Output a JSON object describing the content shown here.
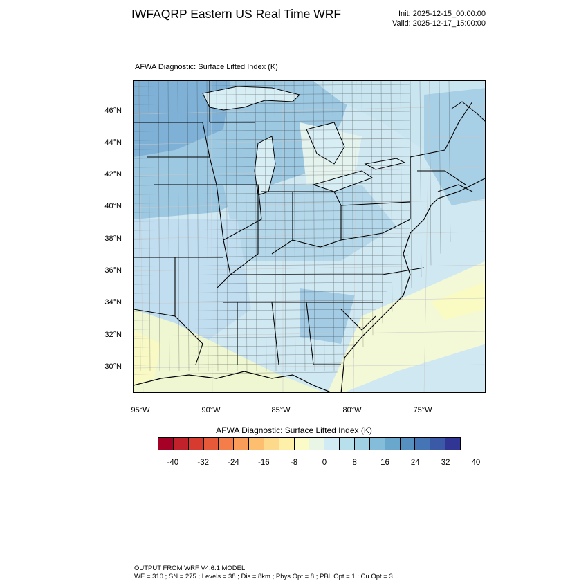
{
  "header": {
    "title": "IWFAQRP Eastern US Real Time WRF",
    "init": "Init: 2025-12-15_00:00:00",
    "valid": "Valid: 2025-12-17_15:00:00"
  },
  "plot": {
    "field_label": "AFWA Diagnostic: Surface Lifted Index   (K)",
    "lat_labels": [
      "46°N",
      "44°N",
      "42°N",
      "40°N",
      "38°N",
      "36°N",
      "34°N",
      "32°N",
      "30°N"
    ],
    "lon_labels": [
      "95°W",
      "90°W",
      "85°W",
      "80°W",
      "75°W"
    ]
  },
  "colorbar": {
    "title": "AFWA Diagnostic: Surface Lifted Index  (K)",
    "colors": [
      "#a50026",
      "#c0212b",
      "#d73a2f",
      "#e65a3a",
      "#f47d4a",
      "#f99d59",
      "#fdbe70",
      "#fdd98b",
      "#fef0a8",
      "#fbfbc8",
      "#e9f6e6",
      "#d0ebf3",
      "#b7dfec",
      "#9fd0e4",
      "#84bdd9",
      "#6aa7cd",
      "#5590c1",
      "#4575b4",
      "#3a59a6",
      "#313695"
    ],
    "ticks": [
      "-40",
      "-32",
      "-24",
      "-16",
      "-8",
      "0",
      "8",
      "16",
      "24",
      "32",
      "40"
    ]
  },
  "map_data": {
    "extent": {
      "lon": [
        -95.5,
        -70.5
      ],
      "lat": [
        28.5,
        47.8
      ]
    },
    "field": "Surface Lifted Index (K)",
    "region_values": {
      "upper_midwest": 28,
      "great_lakes_ontario": 14,
      "ohio_valley": 18,
      "northeast": 26,
      "southeast_interior": 14,
      "atlantic_offshore": 10,
      "gulf_coast": 4,
      "texas_east": 6
    }
  },
  "footer": {
    "line1": "OUTPUT FROM WRF V4.6.1 MODEL",
    "line2": "WE = 310 ; SN = 275 ; Levels = 38 ; Dis = 8km ; Phys Opt = 8 ; PBL Opt = 1 ; Cu Opt = 3"
  }
}
